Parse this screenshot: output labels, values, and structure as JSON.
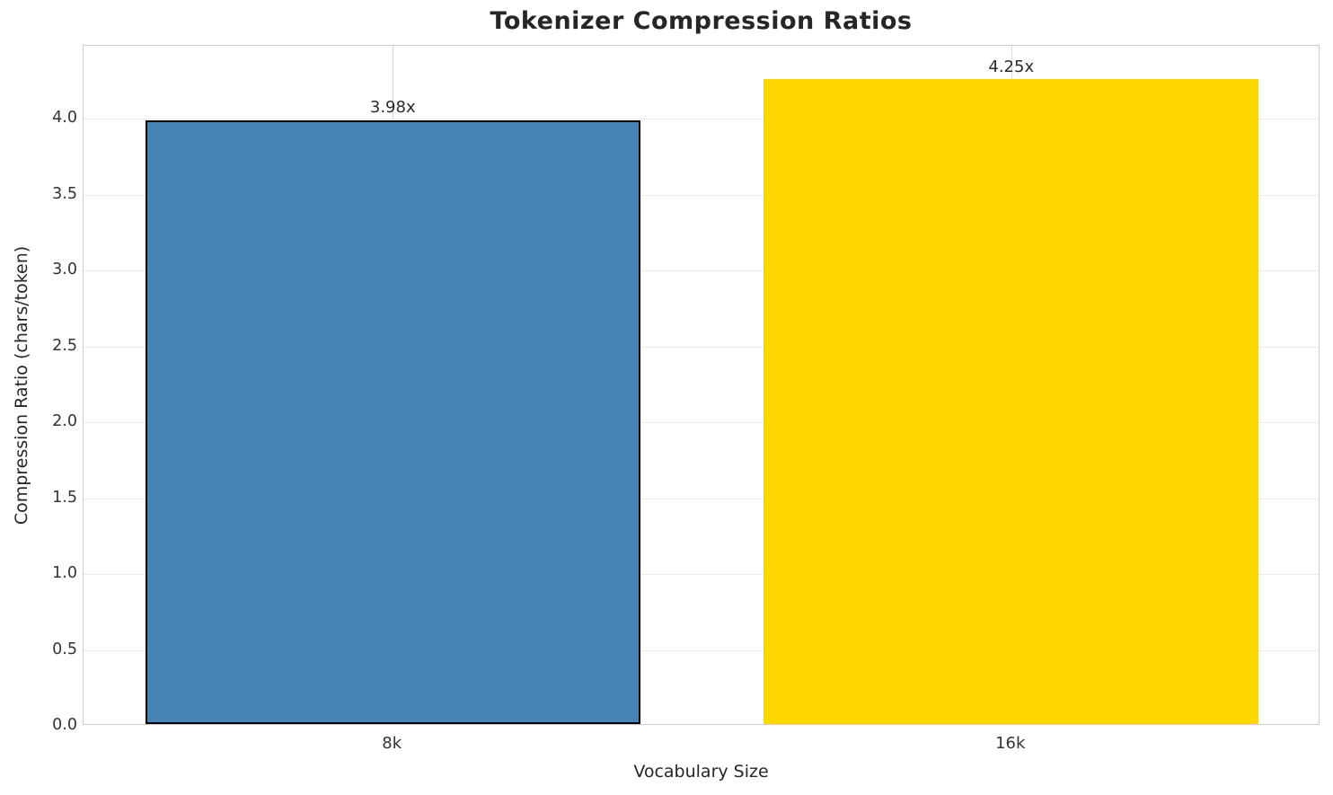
{
  "chart_data": {
    "type": "bar",
    "title": "Tokenizer Compression Ratios",
    "xlabel": "Vocabulary Size",
    "ylabel": "Compression Ratio (chars/token)",
    "categories": [
      "8k",
      "16k"
    ],
    "values": [
      3.98,
      4.25
    ],
    "bar_labels": [
      "3.98x",
      "4.25x"
    ],
    "bar_colors": [
      "#4682B4",
      "#FFD700"
    ],
    "bar_edge_colors": [
      "#000000",
      null
    ],
    "bar_edge_width": 2,
    "bar_width_fraction": 0.8,
    "ylim": [
      0,
      4.48
    ],
    "yticks": [
      0.0,
      0.5,
      1.0,
      1.5,
      2.0,
      2.5,
      3.0,
      3.5,
      4.0
    ],
    "ytick_labels": [
      "0.0",
      "0.5",
      "1.0",
      "1.5",
      "2.0",
      "2.5",
      "3.0",
      "3.5",
      "4.0"
    ],
    "grid": true,
    "legend": null,
    "background_color": "#ffffff",
    "text_color": "#262626"
  }
}
